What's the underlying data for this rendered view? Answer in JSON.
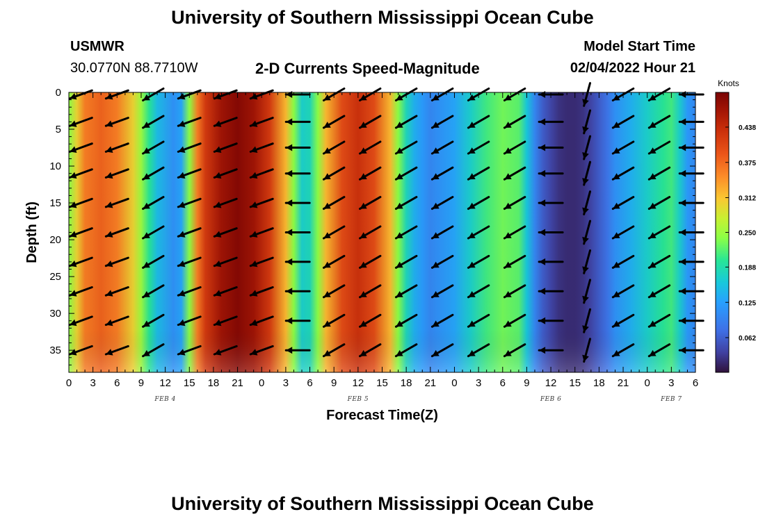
{
  "header": {
    "title_top": "University of Southern Mississippi Ocean Cube",
    "title_bottom": "University of Southern Mississippi Ocean Cube",
    "station": "USMWR",
    "coords": "30.0770N  88.7710W",
    "model_start_label": "Model Start Time",
    "model_start_value": "02/04/2022 Hour 21",
    "subtitle": "2-D Currents Speed-Magnitude"
  },
  "chart_data": {
    "type": "heatmap",
    "title": "2-D Currents Speed-Magnitude",
    "xlabel": "Forecast Time(Z)",
    "ylabel": "Depth (ft)",
    "colorbar_unit": "Knots",
    "x_tick_labels": [
      "0",
      "3",
      "6",
      "9",
      "12",
      "15",
      "18",
      "21",
      "0",
      "3",
      "6",
      "9",
      "12",
      "15",
      "18",
      "21",
      "0",
      "3",
      "6",
      "9",
      "12",
      "15",
      "18",
      "21",
      "0",
      "3",
      "6"
    ],
    "date_labels": [
      {
        "label": "FEB 4",
        "hour": 12
      },
      {
        "label": "FEB 5",
        "hour": 36
      },
      {
        "label": "FEB 6",
        "hour": 60
      },
      {
        "label": "FEB 7",
        "hour": 75
      }
    ],
    "x_range_hours": [
      0,
      78
    ],
    "y_tick_labels": [
      "0",
      "5",
      "10",
      "15",
      "20",
      "25",
      "30",
      "35"
    ],
    "ylim_ft": [
      0,
      38
    ],
    "y_inverted": true,
    "colorbar_ticks": [
      "0.062",
      "0.125",
      "0.188",
      "0.250",
      "0.312",
      "0.375",
      "0.438"
    ],
    "colorbar_range": [
      0.0,
      0.5
    ],
    "speed_profile": {
      "hours": [
        0,
        1,
        2,
        4,
        6,
        8,
        9,
        10,
        11,
        13,
        14,
        15,
        16,
        17,
        19,
        21,
        23,
        25,
        27,
        28,
        29,
        30,
        31,
        32,
        34,
        36,
        38,
        40,
        41,
        42,
        43,
        44,
        45,
        46,
        48,
        50,
        52,
        54,
        56,
        57,
        58,
        59,
        60,
        61,
        62,
        63,
        64,
        65,
        66,
        67,
        68,
        70,
        72,
        74,
        75,
        76,
        77,
        78
      ],
      "speed": [
        0.24,
        0.3,
        0.36,
        0.38,
        0.36,
        0.3,
        0.25,
        0.2,
        0.15,
        0.11,
        0.13,
        0.24,
        0.36,
        0.42,
        0.47,
        0.49,
        0.47,
        0.42,
        0.32,
        0.24,
        0.17,
        0.18,
        0.24,
        0.32,
        0.4,
        0.43,
        0.4,
        0.32,
        0.24,
        0.18,
        0.14,
        0.12,
        0.1,
        0.11,
        0.13,
        0.17,
        0.21,
        0.23,
        0.22,
        0.16,
        0.1,
        0.06,
        0.04,
        0.025,
        0.02,
        0.02,
        0.025,
        0.04,
        0.06,
        0.08,
        0.11,
        0.14,
        0.17,
        0.2,
        0.21,
        0.17,
        0.12,
        0.1
      ]
    },
    "arrow_grid": {
      "hours": [
        1.5,
        6,
        10.5,
        15,
        19.5,
        24,
        28.5,
        33,
        37.5,
        42,
        46.5,
        51,
        55.5,
        60,
        64.5,
        69,
        73.5,
        77.5
      ],
      "depths_ft": [
        0,
        4,
        7.5,
        11,
        15,
        19,
        23,
        27,
        31,
        35
      ],
      "angle_deg": [
        200,
        200,
        210,
        200,
        200,
        200,
        180,
        210,
        210,
        210,
        210,
        210,
        210,
        180,
        255,
        210,
        210,
        180
      ]
    }
  }
}
